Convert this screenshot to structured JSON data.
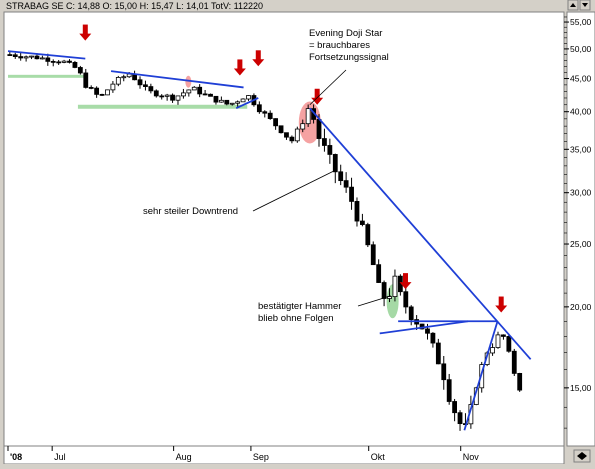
{
  "header": {
    "ticker_line": "STRABAG SE C: 14,88 O: 15,00 H: 15,47 L: 14,01 TotV: 112220"
  },
  "colors": {
    "plot_background": "#ffffff",
    "frame": "#d4d0c8",
    "candle_outline": "#000000",
    "trendline": "#1f3fd6",
    "arrow": "#cc0000",
    "support_zone": "#a8dca8",
    "evening_star_highlight": "#f28b8b",
    "hammer_highlight": "#8fcf8f",
    "gridline": "#c8c8c8"
  },
  "annotations": {
    "evening_star": "Evening Doji Star\n= brauchbares\nFortsetzungssignal",
    "downtrend": "sehr steiler Downtrend",
    "hammer": "bestätigter Hammer\nblieb ohne Folgen"
  },
  "chart_data": {
    "type": "candlestick",
    "y_scale": "log",
    "ylim": [
      12.2,
      57
    ],
    "y_ticks": [
      15,
      20,
      25,
      30,
      35,
      40,
      45,
      50,
      55
    ],
    "y_tick_labels": [
      "15,00",
      "20,00",
      "25,00",
      "30,00",
      "35,00",
      "40,00",
      "45,00",
      "50,00",
      "55,00"
    ],
    "x_labels": [
      "'08",
      "Jul",
      "Aug",
      "Sep",
      "Okt",
      "Nov"
    ],
    "x_label_days": [
      0,
      12,
      45,
      66,
      98,
      123
    ],
    "xlim": [
      0,
      144
    ],
    "last_close": 14.88,
    "candles_count": 95,
    "price_path_anchors": [
      [
        0,
        49.0
      ],
      [
        8,
        48.5
      ],
      [
        15,
        47.8
      ],
      [
        19,
        46.5
      ],
      [
        21,
        44.0
      ],
      [
        25,
        42.0
      ],
      [
        29,
        44.5
      ],
      [
        33,
        45.8
      ],
      [
        38,
        43.0
      ],
      [
        45,
        42.0
      ],
      [
        50,
        43.5
      ],
      [
        55,
        42.0
      ],
      [
        60,
        41.0
      ],
      [
        62,
        41.5
      ],
      [
        65,
        42.5
      ],
      [
        68,
        40.5
      ],
      [
        71,
        39.0
      ],
      [
        74,
        37.5
      ],
      [
        77,
        36.0
      ],
      [
        80,
        38.5
      ],
      [
        82,
        41.0
      ],
      [
        84,
        37.0
      ],
      [
        87,
        34.0
      ],
      [
        90,
        31.5
      ],
      [
        93,
        29.5
      ],
      [
        96,
        26.5
      ],
      [
        99,
        23.5
      ],
      [
        101,
        21.0
      ],
      [
        103,
        20.5
      ],
      [
        105,
        22.0
      ],
      [
        107,
        20.5
      ],
      [
        110,
        19.3
      ],
      [
        113,
        18.5
      ],
      [
        115,
        17.5
      ],
      [
        118,
        16.0
      ],
      [
        120,
        14.5
      ],
      [
        122,
        13.5
      ],
      [
        124,
        12.8
      ],
      [
        126,
        14.0
      ],
      [
        128,
        15.8
      ],
      [
        130,
        17.0
      ],
      [
        132,
        17.5
      ],
      [
        134,
        18.4
      ],
      [
        136,
        17.0
      ],
      [
        138,
        15.5
      ],
      [
        140,
        14.9
      ]
    ]
  }
}
